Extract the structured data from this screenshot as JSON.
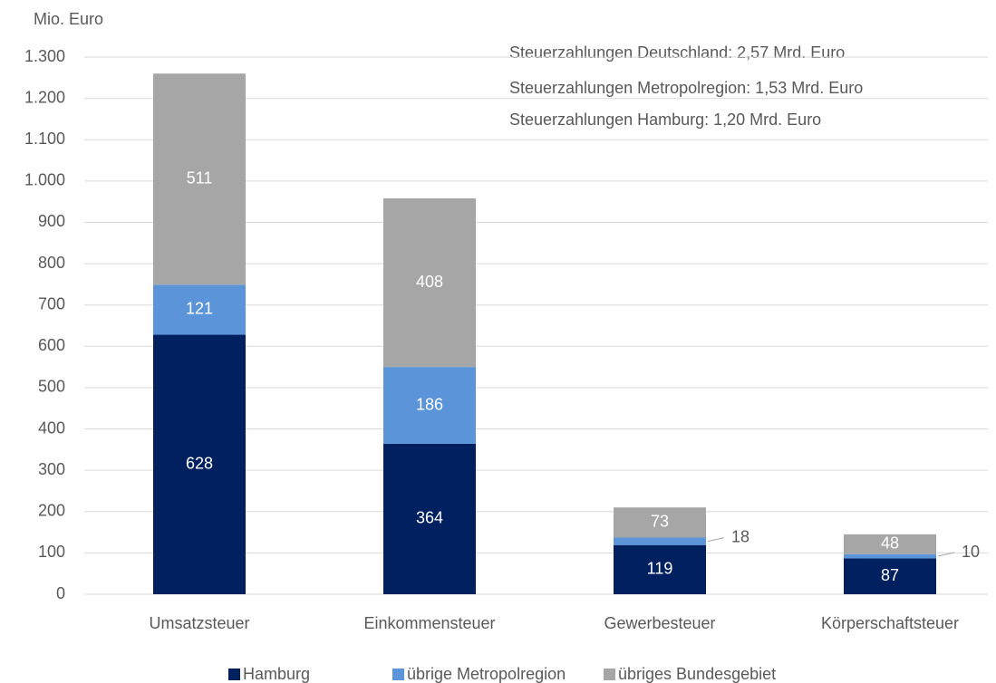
{
  "chart_data": {
    "type": "stacked_bar",
    "y_axis_label": "Mio. Euro",
    "annotations": [
      "Steuerzahlungen Deutschland: 2,57 Mrd. Euro",
      "Steuerzahlungen Metropolregion: 1,53 Mrd. Euro",
      "Steuerzahlungen Hamburg: 1,20 Mrd. Euro"
    ],
    "categories": [
      "Umsatzsteuer",
      "Einkommensteuer",
      "Gewerbesteuer",
      "Körperschaftsteuer"
    ],
    "series": [
      {
        "name": "Hamburg",
        "color": "#002060",
        "values": [
          628,
          364,
          119,
          87
        ]
      },
      {
        "name": "übrige Metropolregion",
        "color": "#5b94d9",
        "values": [
          121,
          186,
          18,
          10
        ]
      },
      {
        "name": "übriges Bundesgebiet",
        "color": "#a6a6a6",
        "values": [
          511,
          408,
          73,
          48
        ]
      }
    ],
    "ylim": [
      0,
      1300
    ],
    "yticks": [
      0,
      100,
      200,
      300,
      400,
      500,
      600,
      700,
      800,
      900,
      {
        "value": 1000,
        "label": "1.000"
      },
      {
        "value": 1100,
        "label": "1.100"
      },
      {
        "value": 1200,
        "label": "1.200"
      },
      {
        "value": 1300,
        "label": "1.300"
      }
    ],
    "grid": true,
    "legend": "bottom"
  }
}
